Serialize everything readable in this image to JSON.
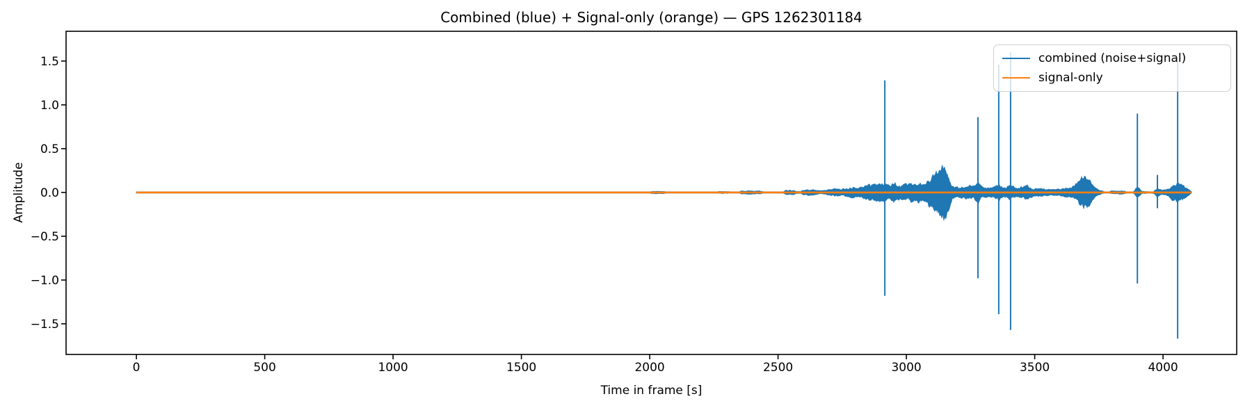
{
  "figure": {
    "title": "Combined (blue) + Signal-only (orange) — GPS 1262301184",
    "xlabel": "Time in frame [s]",
    "ylabel": "Amplitude"
  },
  "legend": {
    "position": "upper right",
    "entries": [
      {
        "label": "combined (noise+signal)",
        "color": "#1f77b4"
      },
      {
        "label": "signal-only",
        "color": "#ff7f0e"
      }
    ]
  },
  "chart_data": {
    "type": "line",
    "title": "Combined (blue) + Signal-only (orange) — GPS 1262301184",
    "xlabel": "Time in frame [s]",
    "ylabel": "Amplitude",
    "xlim": [
      -274,
      4287
    ],
    "ylim": [
      -1.85,
      1.84
    ],
    "xticks": [
      0,
      500,
      1000,
      1500,
      2000,
      2500,
      3000,
      3500,
      4000
    ],
    "xtick_labels": [
      "0",
      "500",
      "1000",
      "1500",
      "2000",
      "2500",
      "3000",
      "3500",
      "4000"
    ],
    "yticks": [
      1.5,
      1.0,
      0.5,
      0.0,
      -0.5,
      -1.0,
      -1.5
    ],
    "ytick_labels": [
      "1.5",
      "1.0",
      "0.5",
      "0.0",
      "−0.5",
      "−1.0",
      "−1.5"
    ],
    "grid": false,
    "legend_position": "upper right",
    "series": [
      {
        "name": "combined (noise+signal)",
        "color": "#1f77b4",
        "style": "noise-envelope",
        "x_range": [
          0,
          4110
        ],
        "envelope": [
          [
            0,
            0.004
          ],
          [
            1990,
            0.004
          ],
          [
            2005,
            0.013
          ],
          [
            2030,
            0.016
          ],
          [
            2055,
            0.013
          ],
          [
            2070,
            0.004
          ],
          [
            2255,
            0.004
          ],
          [
            2268,
            0.012
          ],
          [
            2305,
            0.012
          ],
          [
            2318,
            0.005
          ],
          [
            2345,
            0.006
          ],
          [
            2358,
            0.02
          ],
          [
            2400,
            0.022
          ],
          [
            2432,
            0.02
          ],
          [
            2445,
            0.008
          ],
          [
            2518,
            0.008
          ],
          [
            2530,
            0.028
          ],
          [
            2558,
            0.03
          ],
          [
            2572,
            0.012
          ],
          [
            2588,
            0.013
          ],
          [
            2598,
            0.032
          ],
          [
            2620,
            0.036
          ],
          [
            2645,
            0.032
          ],
          [
            2662,
            0.02
          ],
          [
            2682,
            0.024
          ],
          [
            2702,
            0.036
          ],
          [
            2730,
            0.052
          ],
          [
            2758,
            0.046
          ],
          [
            2790,
            0.066
          ],
          [
            2820,
            0.062
          ],
          [
            2850,
            0.09
          ],
          [
            2880,
            0.1
          ],
          [
            2900,
            0.12
          ],
          [
            2912,
            0.11
          ],
          [
            2925,
            0.1
          ],
          [
            2938,
            0.09
          ],
          [
            2950,
            0.13
          ],
          [
            2962,
            0.11
          ],
          [
            2975,
            0.085
          ],
          [
            2990,
            0.1
          ],
          [
            3005,
            0.09
          ],
          [
            3020,
            0.12
          ],
          [
            3035,
            0.1
          ],
          [
            3050,
            0.13
          ],
          [
            3065,
            0.11
          ],
          [
            3080,
            0.16
          ],
          [
            3095,
            0.19
          ],
          [
            3110,
            0.23
          ],
          [
            3125,
            0.27
          ],
          [
            3140,
            0.32
          ],
          [
            3152,
            0.33
          ],
          [
            3162,
            0.27
          ],
          [
            3170,
            0.18
          ],
          [
            3178,
            0.09
          ],
          [
            3190,
            0.07
          ],
          [
            3222,
            0.065
          ],
          [
            3245,
            0.09
          ],
          [
            3262,
            0.078
          ],
          [
            3272,
            0.11
          ],
          [
            3282,
            0.12
          ],
          [
            3292,
            0.08
          ],
          [
            3305,
            0.06
          ],
          [
            3332,
            0.06
          ],
          [
            3352,
            0.09
          ],
          [
            3362,
            0.1
          ],
          [
            3374,
            0.07
          ],
          [
            3390,
            0.062
          ],
          [
            3400,
            0.09
          ],
          [
            3412,
            0.088
          ],
          [
            3424,
            0.06
          ],
          [
            3440,
            0.056
          ],
          [
            3456,
            0.08
          ],
          [
            3470,
            0.09
          ],
          [
            3486,
            0.062
          ],
          [
            3500,
            0.05
          ],
          [
            3545,
            0.046
          ],
          [
            3562,
            0.035
          ],
          [
            3590,
            0.04
          ],
          [
            3612,
            0.05
          ],
          [
            3636,
            0.062
          ],
          [
            3656,
            0.09
          ],
          [
            3672,
            0.14
          ],
          [
            3686,
            0.19
          ],
          [
            3700,
            0.21
          ],
          [
            3714,
            0.155
          ],
          [
            3726,
            0.09
          ],
          [
            3740,
            0.05
          ],
          [
            3756,
            0.028
          ],
          [
            3770,
            0.008
          ],
          [
            3790,
            0.006
          ],
          [
            3798,
            0.018
          ],
          [
            3826,
            0.021
          ],
          [
            3850,
            0.016
          ],
          [
            3860,
            0.005
          ],
          [
            3884,
            0.005
          ],
          [
            3894,
            0.05
          ],
          [
            3901,
            0.07
          ],
          [
            3909,
            0.05
          ],
          [
            3917,
            0.015
          ],
          [
            3940,
            0.01
          ],
          [
            3964,
            0.012
          ],
          [
            3972,
            0.04
          ],
          [
            3979,
            0.06
          ],
          [
            3986,
            0.04
          ],
          [
            3996,
            0.03
          ],
          [
            4010,
            0.032
          ],
          [
            4024,
            0.05
          ],
          [
            4036,
            0.1
          ],
          [
            4046,
            0.12
          ],
          [
            4056,
            0.13
          ],
          [
            4066,
            0.115
          ],
          [
            4076,
            0.1
          ],
          [
            4086,
            0.07
          ],
          [
            4096,
            0.05
          ],
          [
            4105,
            0.026
          ],
          [
            4110,
            0.01
          ]
        ],
        "spikes": [
          [
            2916,
            1.28,
            -1.18
          ],
          [
            3279,
            0.86,
            -0.98
          ],
          [
            3360,
            1.46,
            -1.39
          ],
          [
            3406,
            1.6,
            -1.57
          ],
          [
            3900,
            0.9,
            -1.04
          ],
          [
            3978,
            0.2,
            -0.18
          ],
          [
            4057,
            1.5,
            -1.67
          ]
        ]
      },
      {
        "name": "signal-only",
        "color": "#ff7f0e",
        "style": "flat-line",
        "x_range": [
          0,
          4110
        ],
        "value": 0
      }
    ]
  }
}
